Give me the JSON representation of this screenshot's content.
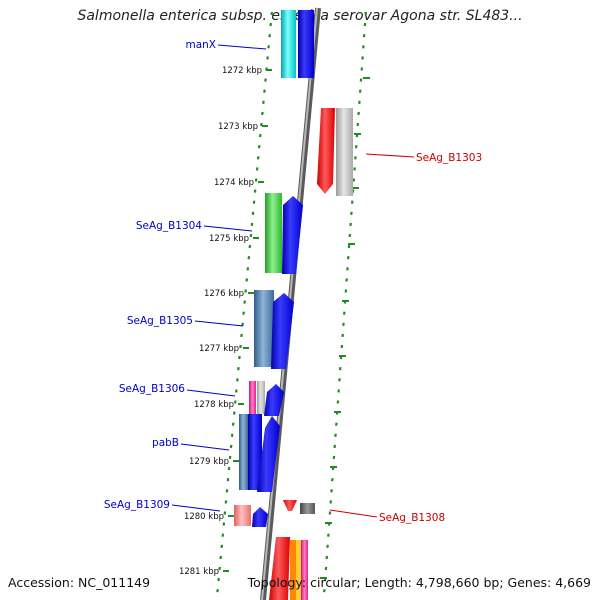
{
  "title": "Salmonella enterica subsp. enterica serovar Agona str. SL483...",
  "footer": {
    "accession": "Accession: NC_011149",
    "topology": "Topology: circular; Length: 4,798,660 bp; Genes: 4,669"
  },
  "colors": {
    "backbone": "#888888",
    "tick": "#228B22",
    "left_label": "#0000CC",
    "right_label": "#CC0000",
    "forward_strand": "#0000EE",
    "reverse_strand": "#EE0000"
  },
  "kbp_labels": [
    "1272 kbp",
    "1273 kbp",
    "1274 kbp",
    "1275 kbp",
    "1276 kbp",
    "1277 kbp",
    "1278 kbp",
    "1279 kbp",
    "1280 kbp",
    "1281 kbp"
  ],
  "genes_left": [
    {
      "name": "manX",
      "color": "#00CCCC"
    },
    {
      "name": "SeAg_B1304",
      "color": "#33CC33"
    },
    {
      "name": "SeAg_B1305",
      "color": "#4682B4"
    },
    {
      "name": "SeAg_B1306",
      "color": "#FF1493"
    },
    {
      "name": "pabB",
      "color": "#4682B4"
    },
    {
      "name": "SeAg_B1309",
      "color": "#F08080"
    }
  ],
  "genes_right": [
    {
      "name": "SeAg_B1303",
      "color": "#FF0000"
    },
    {
      "name": "SeAg_B1308",
      "color": "#FF0000"
    }
  ]
}
